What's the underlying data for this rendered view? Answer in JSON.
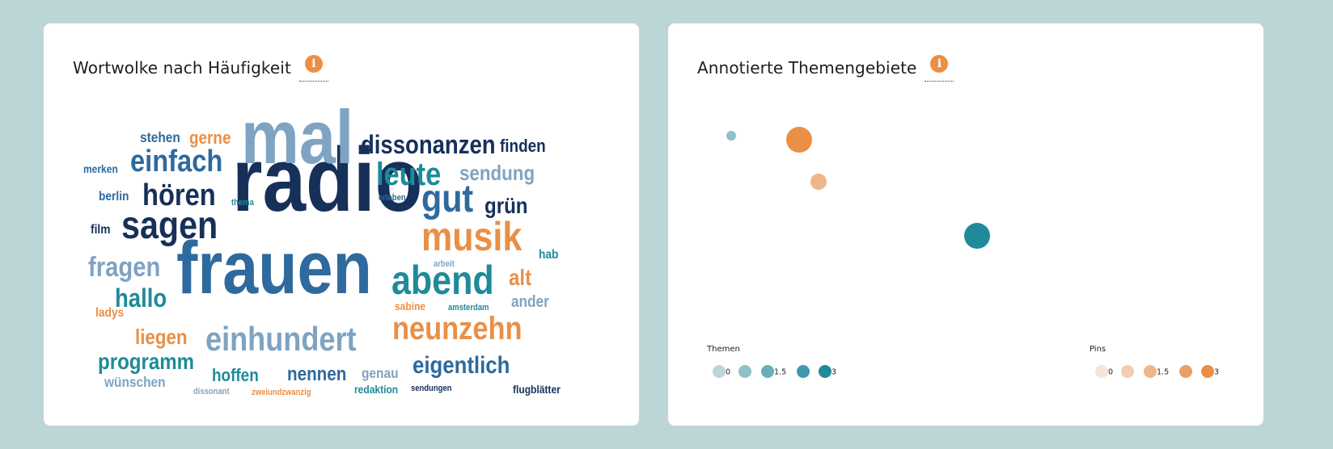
{
  "colors": {
    "background": "#bcd6d8",
    "navy": "#16305a",
    "blue": "#2e6a9e",
    "teal": "#1f8a9a",
    "steel": "#7fa3c2",
    "orange": "#ea8f46"
  },
  "wordcloud": {
    "title": "Wortwolke nach Häufigkeit",
    "info_icon": "info-icon",
    "words": [
      {
        "text": "radio",
        "color": "navy"
      },
      {
        "text": "frauen",
        "color": "blue"
      },
      {
        "text": "mal",
        "color": "steel"
      },
      {
        "text": "einhundert",
        "color": "steel"
      },
      {
        "text": "abend",
        "color": "teal"
      },
      {
        "text": "musik",
        "color": "orange"
      },
      {
        "text": "neunzehn",
        "color": "orange"
      },
      {
        "text": "sagen",
        "color": "navy"
      },
      {
        "text": "gut",
        "color": "blue"
      },
      {
        "text": "dissonanzen",
        "color": "navy"
      },
      {
        "text": "leute",
        "color": "teal"
      },
      {
        "text": "einfach",
        "color": "blue"
      },
      {
        "text": "hören",
        "color": "navy"
      },
      {
        "text": "eigentlich",
        "color": "blue"
      },
      {
        "text": "fragen",
        "color": "steel"
      },
      {
        "text": "hallo",
        "color": "teal"
      },
      {
        "text": "programm",
        "color": "teal"
      },
      {
        "text": "sendung",
        "color": "steel"
      },
      {
        "text": "grün",
        "color": "navy"
      },
      {
        "text": "finden",
        "color": "navy"
      },
      {
        "text": "liegen",
        "color": "orange"
      },
      {
        "text": "alt",
        "color": "orange"
      },
      {
        "text": "nennen",
        "color": "blue"
      },
      {
        "text": "hoffen",
        "color": "teal"
      },
      {
        "text": "gerne",
        "color": "orange"
      },
      {
        "text": "stehen",
        "color": "blue"
      },
      {
        "text": "ander",
        "color": "steel"
      },
      {
        "text": "wünschen",
        "color": "steel"
      },
      {
        "text": "berlin",
        "color": "blue"
      },
      {
        "text": "film",
        "color": "navy"
      },
      {
        "text": "genau",
        "color": "steel"
      },
      {
        "text": "hab",
        "color": "teal"
      },
      {
        "text": "ladys",
        "color": "orange"
      },
      {
        "text": "merken",
        "color": "blue"
      },
      {
        "text": "redaktion",
        "color": "teal"
      },
      {
        "text": "flugblätter",
        "color": "navy"
      },
      {
        "text": "sabine",
        "color": "orange"
      },
      {
        "text": "sendungen",
        "color": "navy"
      },
      {
        "text": "dissonant",
        "color": "steel"
      },
      {
        "text": "zweiundzwanzig",
        "color": "orange"
      },
      {
        "text": "amsterdam",
        "color": "teal"
      },
      {
        "text": "thema",
        "color": "teal"
      },
      {
        "text": "erleben",
        "color": "blue"
      },
      {
        "text": "arbeit",
        "color": "steel"
      }
    ]
  },
  "topics": {
    "title": "Annotierte Themengebiete",
    "info_icon": "info-icon",
    "bubbles": [
      {
        "kind": "themen",
        "value": 0.5
      },
      {
        "kind": "pins",
        "value": 3
      },
      {
        "kind": "pins",
        "value": 1.5
      },
      {
        "kind": "themen",
        "value": 3
      }
    ],
    "legend_themen": {
      "title": "Themen",
      "steps": [
        {
          "value": 0,
          "label": "0",
          "color": "#bcd6d8"
        },
        {
          "value": 0.75,
          "label": "",
          "color": "#8fc1c8"
        },
        {
          "value": 1.5,
          "label": "1.5",
          "color": "#6aaeb8"
        },
        {
          "value": 2.25,
          "label": "",
          "color": "#3f9aaa"
        },
        {
          "value": 3,
          "label": "3",
          "color": "#1f8a9a"
        }
      ]
    },
    "legend_pins": {
      "title": "Pins",
      "steps": [
        {
          "value": 0,
          "label": "0",
          "color": "#f6e4da"
        },
        {
          "value": 0.75,
          "label": "",
          "color": "#f2cdb1"
        },
        {
          "value": 1.5,
          "label": "1.5",
          "color": "#efb68a"
        },
        {
          "value": 2.25,
          "label": "",
          "color": "#ec9f63"
        },
        {
          "value": 3,
          "label": "3",
          "color": "#ea8f46"
        }
      ]
    }
  }
}
